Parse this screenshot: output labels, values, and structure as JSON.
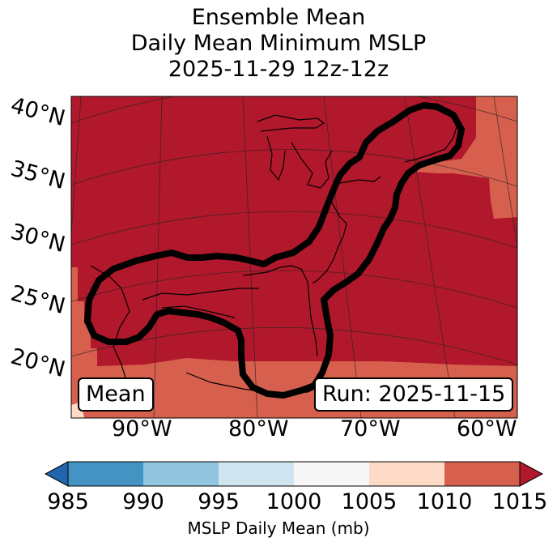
{
  "title": {
    "line1": "Ensemble Mean",
    "line2": "Daily Mean Minimum MSLP",
    "line3": "2025-11-29 12z-12z"
  },
  "map": {
    "lat_labels": [
      "40°N",
      "35°N",
      "30°N",
      "25°N",
      "20°N"
    ],
    "lon_labels": [
      "90°W",
      "80°W",
      "70°W",
      "60°W"
    ],
    "badge_left": "Mean",
    "badge_right": "Run: 2025-11-15",
    "fill_colors": {
      "main": "#b2182b",
      "secondary": "#d6604d",
      "light": "#fddbc7"
    }
  },
  "colorbar": {
    "ticks": [
      "985",
      "990",
      "995",
      "1000",
      "1005",
      "1010",
      "1015"
    ],
    "colors": [
      "#2166ac",
      "#4393c3",
      "#92c5de",
      "#d1e5f0",
      "#f7f7f7",
      "#fddbc7",
      "#d6604d",
      "#b2182b"
    ],
    "label": "MSLP Daily Mean (mb)"
  }
}
